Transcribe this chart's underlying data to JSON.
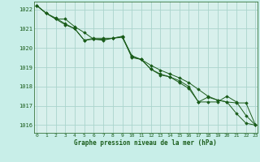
{
  "title": "Graphe pression niveau de la mer (hPa)",
  "bg_color": "#c8eee8",
  "grid_color": "#aad4cc",
  "plot_bg": "#d8f0ec",
  "line_color": "#1a5c1a",
  "xlabel_color": "#1a5c1a",
  "series1": [
    1022.2,
    1021.8,
    1021.5,
    1021.5,
    1021.1,
    1020.8,
    1020.45,
    1020.4,
    1020.5,
    1020.6,
    1019.6,
    1019.4,
    1019.1,
    1018.85,
    1018.65,
    1018.45,
    1018.2,
    1017.85,
    1017.5,
    1017.3,
    1017.2,
    1016.6,
    1016.1,
    1016.0
  ],
  "series2": [
    1022.2,
    1021.8,
    1021.55,
    1021.25,
    1021.0,
    1020.4,
    1020.45,
    1020.45,
    1020.5,
    1020.55,
    1019.55,
    1019.4,
    1018.9,
    1018.65,
    1018.5,
    1018.3,
    1018.0,
    1017.2,
    1017.45,
    1017.3,
    1017.2,
    1017.15,
    1017.15,
    1016.0
  ],
  "series3": [
    1022.2,
    1021.8,
    1021.5,
    1021.2,
    1021.0,
    1020.4,
    1020.5,
    1020.5,
    1020.5,
    1020.6,
    1019.5,
    1019.4,
    1018.9,
    1018.6,
    1018.5,
    1018.2,
    1017.9,
    1017.2,
    1017.2,
    1017.2,
    1017.5,
    1017.2,
    1016.5,
    1016.0
  ],
  "xlim": [
    0,
    23
  ],
  "ylim": [
    1015.6,
    1022.4
  ],
  "yticks": [
    1016,
    1017,
    1018,
    1019,
    1020,
    1021,
    1022
  ],
  "xticks": [
    0,
    1,
    2,
    3,
    4,
    5,
    6,
    7,
    8,
    9,
    10,
    11,
    12,
    13,
    14,
    15,
    16,
    17,
    18,
    19,
    20,
    21,
    22,
    23
  ]
}
